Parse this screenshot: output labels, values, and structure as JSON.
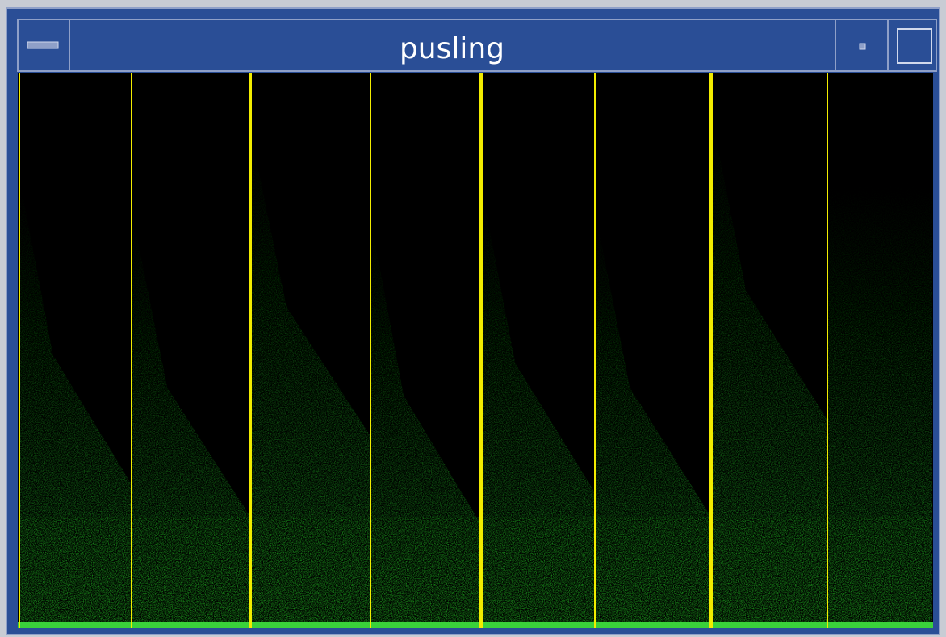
{
  "window": {
    "title": "pusling"
  }
}
